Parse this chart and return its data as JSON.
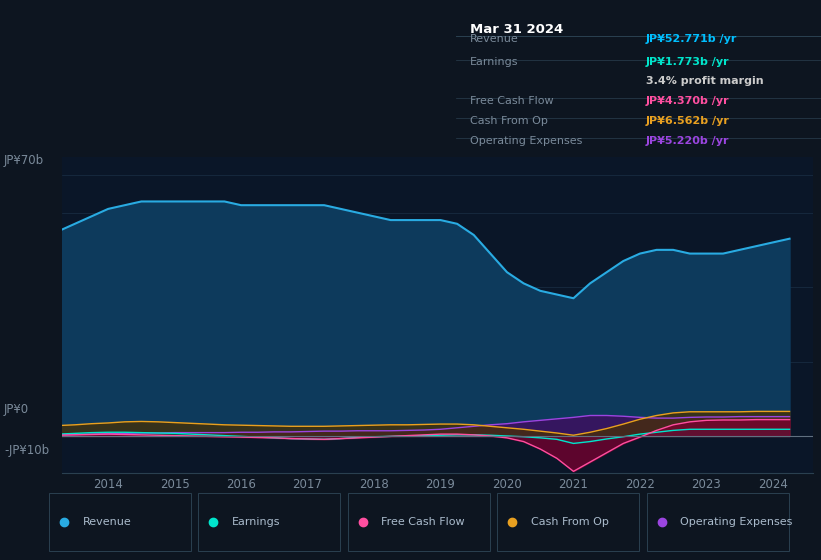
{
  "bg_color": "#0d1520",
  "plot_bg_color": "#0a1628",
  "title": "Mar 31 2024",
  "ylabel_top": "JP¥70b",
  "ylabel_zero": "JP¥0",
  "ylabel_neg": "-JP¥10b",
  "ylim": [
    -10,
    75
  ],
  "xlim_start": 2013.3,
  "xlim_end": 2024.6,
  "years": [
    2013.25,
    2013.5,
    2013.75,
    2014.0,
    2014.25,
    2014.5,
    2014.75,
    2015.0,
    2015.25,
    2015.5,
    2015.75,
    2016.0,
    2016.25,
    2016.5,
    2016.75,
    2017.0,
    2017.25,
    2017.5,
    2017.75,
    2018.0,
    2018.25,
    2018.5,
    2018.75,
    2019.0,
    2019.25,
    2019.5,
    2019.75,
    2020.0,
    2020.25,
    2020.5,
    2020.75,
    2021.0,
    2021.25,
    2021.5,
    2021.75,
    2022.0,
    2022.25,
    2022.5,
    2022.75,
    2023.0,
    2023.25,
    2023.5,
    2023.75,
    2024.0,
    2024.25
  ],
  "revenue": [
    55,
    57,
    59,
    61,
    62,
    63,
    63,
    63,
    63,
    63,
    63,
    62,
    62,
    62,
    62,
    62,
    62,
    61,
    60,
    59,
    58,
    58,
    58,
    58,
    57,
    54,
    49,
    44,
    41,
    39,
    38,
    37,
    41,
    44,
    47,
    49,
    50,
    50,
    49,
    49,
    49,
    50,
    51,
    52,
    53
  ],
  "earnings": [
    0.5,
    0.7,
    0.9,
    1.0,
    1.0,
    0.9,
    0.8,
    0.7,
    0.5,
    0.3,
    0.1,
    -0.1,
    -0.3,
    -0.5,
    -0.7,
    -0.8,
    -0.9,
    -0.7,
    -0.4,
    -0.2,
    -0.1,
    0.0,
    0.1,
    0.2,
    0.3,
    0.3,
    0.2,
    0.0,
    -0.2,
    -0.5,
    -0.9,
    -2.0,
    -1.5,
    -0.8,
    -0.2,
    0.5,
    1.0,
    1.5,
    1.8,
    1.8,
    1.8,
    1.8,
    1.8,
    1.8,
    1.8
  ],
  "free_cash_flow": [
    0.2,
    0.3,
    0.4,
    0.5,
    0.4,
    0.3,
    0.2,
    0.1,
    0.0,
    -0.1,
    -0.2,
    -0.3,
    -0.4,
    -0.5,
    -0.7,
    -0.8,
    -0.9,
    -0.7,
    -0.5,
    -0.3,
    -0.1,
    0.1,
    0.3,
    0.5,
    0.5,
    0.3,
    0.0,
    -0.5,
    -1.5,
    -3.5,
    -6.0,
    -9.5,
    -7.0,
    -4.5,
    -2.0,
    -0.3,
    1.5,
    3.0,
    3.8,
    4.2,
    4.3,
    4.3,
    4.4,
    4.4,
    4.4
  ],
  "cash_from_op": [
    2.8,
    3.0,
    3.3,
    3.5,
    3.8,
    3.9,
    3.8,
    3.6,
    3.4,
    3.2,
    3.0,
    2.9,
    2.8,
    2.7,
    2.6,
    2.6,
    2.6,
    2.7,
    2.8,
    2.9,
    3.0,
    3.0,
    3.1,
    3.2,
    3.2,
    3.0,
    2.6,
    2.2,
    1.8,
    1.3,
    0.8,
    0.2,
    1.0,
    2.0,
    3.2,
    4.5,
    5.5,
    6.2,
    6.5,
    6.5,
    6.5,
    6.5,
    6.6,
    6.6,
    6.6
  ],
  "operating_expenses": [
    0.3,
    0.4,
    0.5,
    0.6,
    0.7,
    0.8,
    0.8,
    0.9,
    0.9,
    0.9,
    0.9,
    1.0,
    1.0,
    1.1,
    1.1,
    1.2,
    1.3,
    1.3,
    1.4,
    1.4,
    1.4,
    1.5,
    1.6,
    1.8,
    2.2,
    2.6,
    3.0,
    3.3,
    3.8,
    4.2,
    4.6,
    5.0,
    5.5,
    5.5,
    5.3,
    5.0,
    4.8,
    4.8,
    5.0,
    5.1,
    5.1,
    5.2,
    5.2,
    5.2,
    5.2
  ],
  "revenue_line_color": "#29abe2",
  "revenue_fill_color": "#0d3a5c",
  "earnings_color": "#00e5cc",
  "earnings_fill_color": "#005040",
  "free_cash_flow_color": "#ff4fa0",
  "free_cash_flow_fill_color": "#7a0030",
  "cash_from_op_color": "#e8a020",
  "cash_from_op_fill_color": "#4a3000",
  "operating_expenses_color": "#9b45e0",
  "operating_expenses_fill_color": "#3d1060",
  "xticks": [
    2014,
    2015,
    2016,
    2017,
    2018,
    2019,
    2020,
    2021,
    2022,
    2023,
    2024
  ],
  "grid_color": "#1a2f45",
  "legend_entries": [
    "Revenue",
    "Earnings",
    "Free Cash Flow",
    "Cash From Op",
    "Operating Expenses"
  ],
  "legend_colors": [
    "#29abe2",
    "#00e5cc",
    "#ff4fa0",
    "#e8a020",
    "#9b45e0"
  ],
  "info_rows": [
    {
      "label": "Revenue",
      "value": "JP¥52.771b /yr",
      "value_color": "#00bfff"
    },
    {
      "label": "Earnings",
      "value": "JP¥1.773b /yr",
      "value_color": "#00e5cc"
    },
    {
      "label": "",
      "value": "3.4% profit margin",
      "value_color": "#cccccc"
    },
    {
      "label": "Free Cash Flow",
      "value": "JP¥4.370b /yr",
      "value_color": "#ff4fa0"
    },
    {
      "label": "Cash From Op",
      "value": "JP¥6.562b /yr",
      "value_color": "#e8a020"
    },
    {
      "label": "Operating Expenses",
      "value": "JP¥5.220b /yr",
      "value_color": "#9b45e0"
    }
  ]
}
